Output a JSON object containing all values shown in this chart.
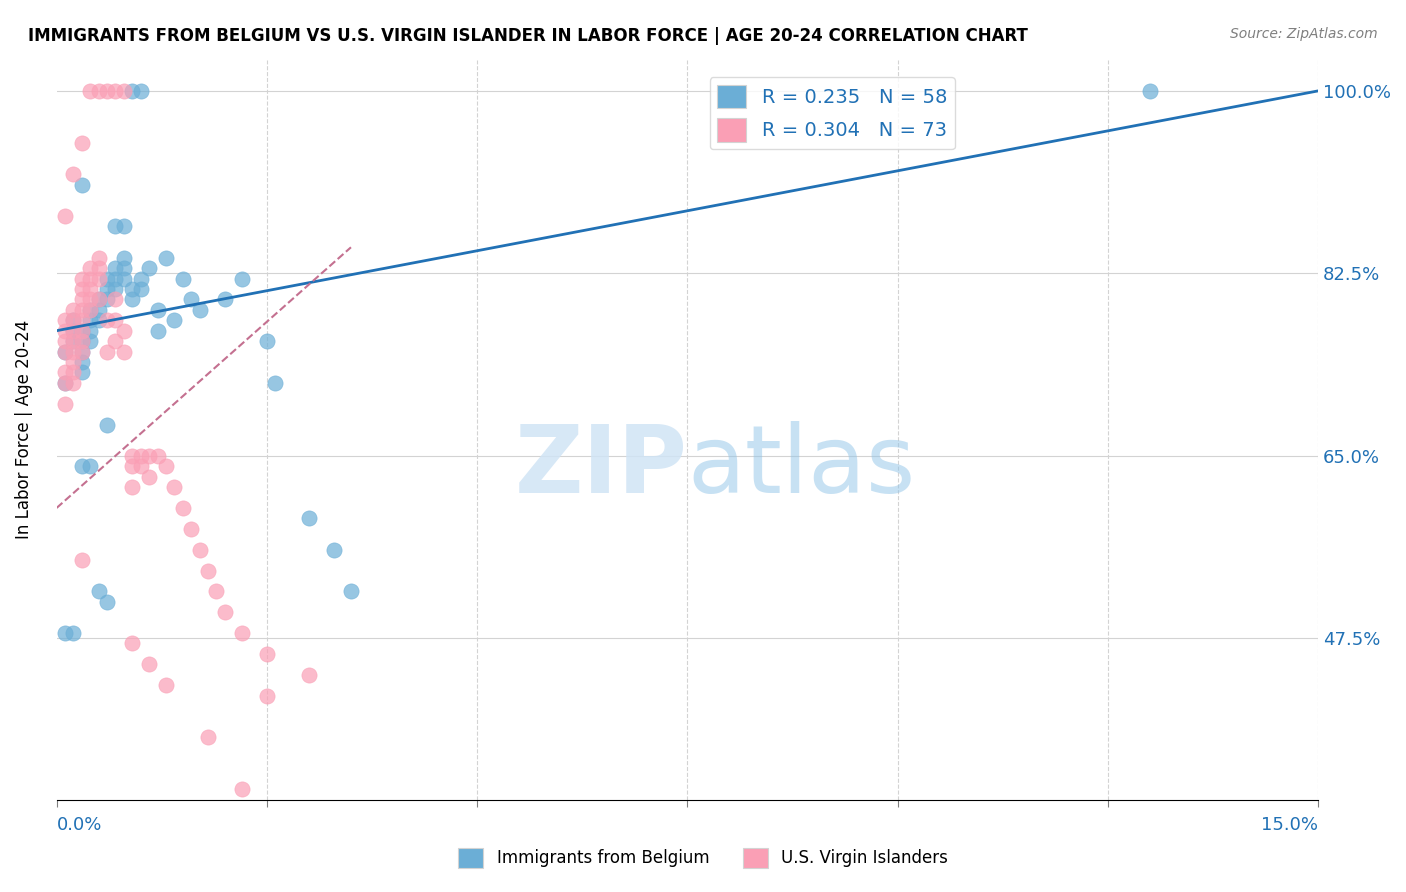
{
  "title": "IMMIGRANTS FROM BELGIUM VS U.S. VIRGIN ISLANDER IN LABOR FORCE | AGE 20-24 CORRELATION CHART",
  "source": "Source: ZipAtlas.com",
  "ylabel": "In Labor Force | Age 20-24",
  "yticks": [
    "100.0%",
    "82.5%",
    "65.0%",
    "47.5%"
  ],
  "ytick_vals": [
    1.0,
    0.825,
    0.65,
    0.475
  ],
  "xlim": [
    0.0,
    0.15
  ],
  "ylim": [
    0.32,
    1.03
  ],
  "blue_color": "#6baed6",
  "pink_color": "#fa9fb5",
  "blue_line_color": "#2171b5",
  "pink_line_color": "#c47090",
  "blue_points_x": [
    0.001,
    0.001,
    0.002,
    0.002,
    0.002,
    0.003,
    0.003,
    0.003,
    0.003,
    0.003,
    0.004,
    0.004,
    0.004,
    0.004,
    0.005,
    0.005,
    0.005,
    0.006,
    0.006,
    0.006,
    0.007,
    0.007,
    0.007,
    0.008,
    0.008,
    0.008,
    0.009,
    0.009,
    0.01,
    0.01,
    0.011,
    0.012,
    0.012,
    0.013,
    0.014,
    0.015,
    0.016,
    0.017,
    0.02,
    0.022,
    0.025,
    0.026,
    0.03,
    0.033,
    0.035,
    0.001,
    0.002,
    0.003,
    0.004,
    0.005,
    0.006,
    0.007,
    0.008,
    0.009,
    0.01,
    0.003,
    0.006,
    0.13
  ],
  "blue_points_y": [
    0.75,
    0.72,
    0.78,
    0.77,
    0.76,
    0.77,
    0.76,
    0.75,
    0.74,
    0.73,
    0.79,
    0.78,
    0.77,
    0.76,
    0.8,
    0.79,
    0.78,
    0.82,
    0.81,
    0.8,
    0.83,
    0.82,
    0.81,
    0.84,
    0.83,
    0.82,
    0.81,
    0.8,
    0.82,
    0.81,
    0.83,
    0.79,
    0.77,
    0.84,
    0.78,
    0.82,
    0.8,
    0.79,
    0.8,
    0.82,
    0.76,
    0.72,
    0.59,
    0.56,
    0.52,
    0.48,
    0.48,
    0.64,
    0.64,
    0.52,
    0.51,
    0.87,
    0.87,
    1.0,
    1.0,
    0.91,
    0.68,
    1.0
  ],
  "pink_points_x": [
    0.001,
    0.001,
    0.001,
    0.001,
    0.001,
    0.001,
    0.001,
    0.002,
    0.002,
    0.002,
    0.002,
    0.002,
    0.002,
    0.002,
    0.002,
    0.003,
    0.003,
    0.003,
    0.003,
    0.003,
    0.003,
    0.003,
    0.003,
    0.004,
    0.004,
    0.004,
    0.004,
    0.004,
    0.005,
    0.005,
    0.005,
    0.005,
    0.006,
    0.006,
    0.007,
    0.007,
    0.007,
    0.008,
    0.008,
    0.009,
    0.009,
    0.009,
    0.01,
    0.01,
    0.011,
    0.011,
    0.012,
    0.013,
    0.014,
    0.015,
    0.016,
    0.017,
    0.018,
    0.019,
    0.02,
    0.022,
    0.025,
    0.03,
    0.001,
    0.002,
    0.003,
    0.004,
    0.005,
    0.006,
    0.007,
    0.008,
    0.022,
    0.025,
    0.009,
    0.011,
    0.013,
    0.018,
    0.003
  ],
  "pink_points_y": [
    0.78,
    0.77,
    0.76,
    0.75,
    0.73,
    0.72,
    0.7,
    0.79,
    0.78,
    0.77,
    0.76,
    0.75,
    0.74,
    0.73,
    0.72,
    0.82,
    0.81,
    0.8,
    0.79,
    0.78,
    0.77,
    0.76,
    0.75,
    0.83,
    0.82,
    0.81,
    0.8,
    0.79,
    0.84,
    0.83,
    0.82,
    0.8,
    0.78,
    0.75,
    0.8,
    0.78,
    0.76,
    0.77,
    0.75,
    0.65,
    0.64,
    0.62,
    0.65,
    0.64,
    0.65,
    0.63,
    0.65,
    0.64,
    0.62,
    0.6,
    0.58,
    0.56,
    0.54,
    0.52,
    0.5,
    0.48,
    0.46,
    0.44,
    0.88,
    0.92,
    0.95,
    1.0,
    1.0,
    1.0,
    1.0,
    1.0,
    0.33,
    0.42,
    0.47,
    0.45,
    0.43,
    0.38,
    0.55
  ],
  "blue_line_x": [
    0.0,
    0.15
  ],
  "blue_line_y": [
    0.77,
    1.0
  ],
  "pink_line_x": [
    0.0,
    0.035
  ],
  "pink_line_y": [
    0.6,
    0.85
  ],
  "xtick_positions": [
    0.0,
    0.025,
    0.05,
    0.075,
    0.1,
    0.125,
    0.15
  ],
  "vgrid_positions": [
    0.025,
    0.05,
    0.075,
    0.1,
    0.125,
    0.15
  ]
}
